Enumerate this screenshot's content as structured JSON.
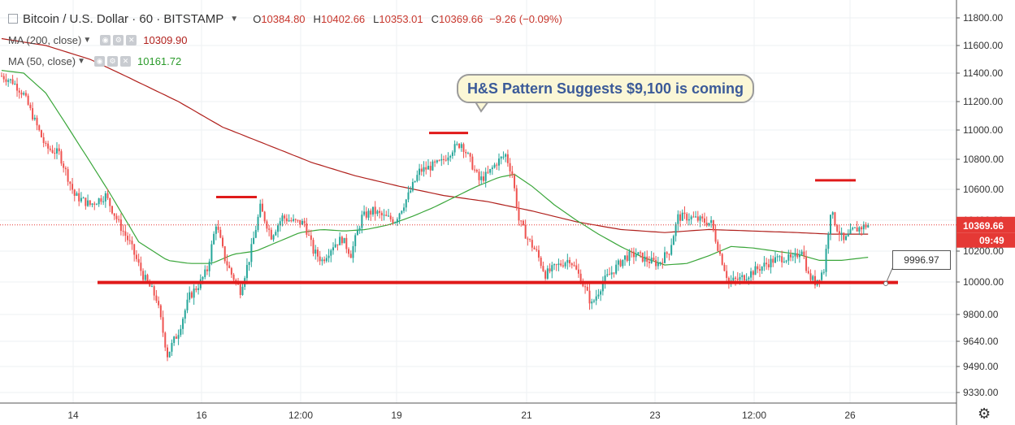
{
  "header": {
    "symbol_title": "Bitcoin / U.S. Dollar · 60 · BITSTAMP",
    "ohlc": {
      "o_label": "O",
      "o": "10384.80",
      "h_label": "H",
      "h": "10402.66",
      "l_label": "L",
      "l": "10353.01",
      "c_label": "C",
      "c": "10369.66",
      "change": "−9.26 (−0.09%)"
    },
    "ma200": {
      "label": "MA (200, close)",
      "value": "10309.90"
    },
    "ma50": {
      "label": "MA (50, close)",
      "value": "10161.72"
    }
  },
  "annotation": {
    "callout": "H&S Pattern Suggests $9,100 is coming",
    "support_label": "9996.97"
  },
  "price_axis": {
    "current_price": "10369.66",
    "countdown": "09:49",
    "ticks": [
      "11800.00",
      "11600.00",
      "11400.00",
      "11200.00",
      "11000.00",
      "10800.00",
      "10600.00",
      "10400.00",
      "10200.00",
      "10000.00",
      "9800.00",
      "9640.00",
      "9490.00",
      "9330.00"
    ]
  },
  "colors": {
    "up": "#26a69a",
    "down": "#ef5350",
    "ma200": "#b0201c",
    "ma50": "#3aa63a",
    "annotation": "#e01a1a",
    "price_tag": "#e53935"
  },
  "chart_data": {
    "type": "candlestick",
    "x_tick_labels": [
      "14",
      "16",
      "12:00",
      "19",
      "21",
      "23",
      "12:00",
      "26"
    ],
    "y_tick_values": [
      11800,
      11600,
      11400,
      11200,
      11000,
      10800,
      10600,
      10400,
      10200,
      10000,
      9800,
      9640,
      9490,
      9330
    ],
    "ylim": [
      9280,
      11900
    ],
    "close_path": [
      [
        0,
        11380
      ],
      [
        5,
        11340
      ],
      [
        10,
        11250
      ],
      [
        14,
        11100
      ],
      [
        20,
        10880
      ],
      [
        26,
        10840
      ],
      [
        33,
        10560
      ],
      [
        40,
        10500
      ],
      [
        47,
        10560
      ],
      [
        53,
        10380
      ],
      [
        58,
        10250
      ],
      [
        64,
        10040
      ],
      [
        70,
        9900
      ],
      [
        75,
        9560
      ],
      [
        80,
        9700
      ],
      [
        85,
        9910
      ],
      [
        90,
        10000
      ],
      [
        93,
        10080
      ],
      [
        97,
        10380
      ],
      [
        101,
        10150
      ],
      [
        104,
        10050
      ],
      [
        108,
        9950
      ],
      [
        112,
        10150
      ],
      [
        117,
        10480
      ],
      [
        122,
        10300
      ],
      [
        127,
        10420
      ],
      [
        132,
        10390
      ],
      [
        137,
        10380
      ],
      [
        141,
        10200
      ],
      [
        145,
        10140
      ],
      [
        150,
        10240
      ],
      [
        154,
        10280
      ],
      [
        158,
        10180
      ],
      [
        163,
        10420
      ],
      [
        168,
        10460
      ],
      [
        173,
        10420
      ],
      [
        178,
        10400
      ],
      [
        184,
        10560
      ],
      [
        189,
        10720
      ],
      [
        194,
        10750
      ],
      [
        199,
        10780
      ],
      [
        204,
        10870
      ],
      [
        208,
        10910
      ],
      [
        212,
        10790
      ],
      [
        216,
        10660
      ],
      [
        220,
        10700
      ],
      [
        224,
        10780
      ],
      [
        228,
        10830
      ],
      [
        231,
        10700
      ],
      [
        234,
        10400
      ],
      [
        238,
        10280
      ],
      [
        242,
        10190
      ],
      [
        246,
        10050
      ],
      [
        251,
        10100
      ],
      [
        257,
        10150
      ],
      [
        262,
        10020
      ],
      [
        267,
        9860
      ],
      [
        272,
        10000
      ],
      [
        277,
        10080
      ],
      [
        282,
        10160
      ],
      [
        287,
        10180
      ],
      [
        292,
        10140
      ],
      [
        297,
        10120
      ],
      [
        302,
        10200
      ],
      [
        306,
        10420
      ],
      [
        311,
        10420
      ],
      [
        316,
        10400
      ],
      [
        321,
        10380
      ],
      [
        325,
        10180
      ],
      [
        329,
        10000
      ],
      [
        334,
        10020
      ],
      [
        339,
        10060
      ],
      [
        344,
        10100
      ],
      [
        349,
        10140
      ],
      [
        354,
        10160
      ],
      [
        358,
        10140
      ],
      [
        362,
        10220
      ],
      [
        365,
        10040
      ],
      [
        368,
        10000
      ],
      [
        372,
        10080
      ],
      [
        375,
        10460
      ],
      [
        378,
        10350
      ],
      [
        381,
        10260
      ],
      [
        385,
        10330
      ],
      [
        388,
        10350
      ],
      [
        392,
        10370
      ]
    ],
    "ma200_path": [
      [
        0,
        11650
      ],
      [
        20,
        11600
      ],
      [
        40,
        11500
      ],
      [
        60,
        11350
      ],
      [
        80,
        11200
      ],
      [
        100,
        11020
      ],
      [
        120,
        10900
      ],
      [
        140,
        10780
      ],
      [
        160,
        10690
      ],
      [
        180,
        10620
      ],
      [
        200,
        10560
      ],
      [
        220,
        10520
      ],
      [
        240,
        10460
      ],
      [
        260,
        10390
      ],
      [
        280,
        10340
      ],
      [
        300,
        10320
      ],
      [
        320,
        10340
      ],
      [
        340,
        10330
      ],
      [
        360,
        10320
      ],
      [
        375,
        10310
      ],
      [
        392,
        10310
      ]
    ],
    "ma50_path": [
      [
        0,
        11420
      ],
      [
        10,
        11400
      ],
      [
        20,
        11260
      ],
      [
        35,
        10900
      ],
      [
        50,
        10550
      ],
      [
        62,
        10260
      ],
      [
        75,
        10140
      ],
      [
        85,
        10120
      ],
      [
        95,
        10120
      ],
      [
        105,
        10180
      ],
      [
        115,
        10200
      ],
      [
        125,
        10260
      ],
      [
        135,
        10320
      ],
      [
        145,
        10340
      ],
      [
        155,
        10330
      ],
      [
        165,
        10340
      ],
      [
        175,
        10370
      ],
      [
        185,
        10420
      ],
      [
        195,
        10480
      ],
      [
        205,
        10550
      ],
      [
        215,
        10620
      ],
      [
        225,
        10680
      ],
      [
        232,
        10700
      ],
      [
        240,
        10620
      ],
      [
        250,
        10500
      ],
      [
        260,
        10400
      ],
      [
        270,
        10310
      ],
      [
        280,
        10230
      ],
      [
        290,
        10160
      ],
      [
        300,
        10110
      ],
      [
        310,
        10120
      ],
      [
        320,
        10170
      ],
      [
        330,
        10230
      ],
      [
        340,
        10220
      ],
      [
        350,
        10200
      ],
      [
        360,
        10180
      ],
      [
        370,
        10140
      ],
      [
        380,
        10140
      ],
      [
        392,
        10160
      ]
    ],
    "pattern_marks": {
      "support_level": 9997,
      "left_shoulder": 10550,
      "head": 10980,
      "right_shoulder": 10660
    }
  }
}
